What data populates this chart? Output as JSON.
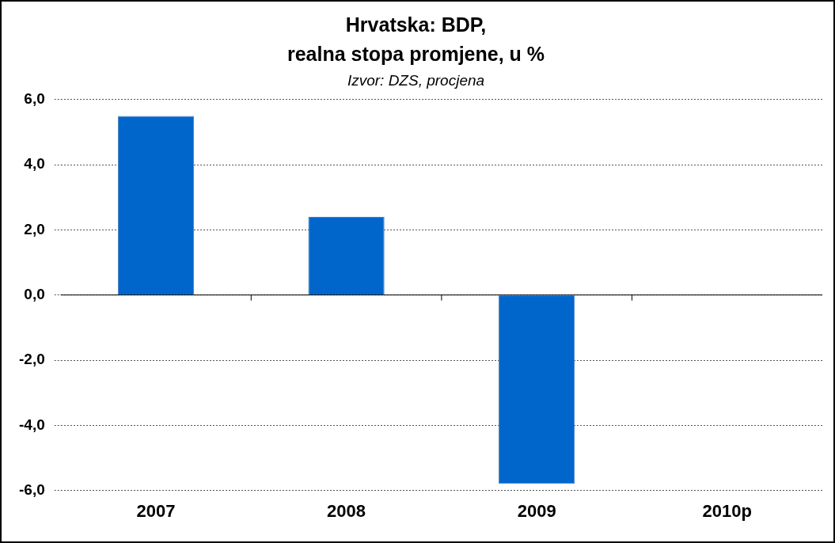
{
  "chart_data": {
    "type": "bar",
    "title": "Hrvatska: BDP,\nrealna stopa promjene, u %",
    "subtitle": "Izvor: DZS, procjena",
    "categories": [
      "2007",
      "2008",
      "2009",
      "2010p"
    ],
    "values": [
      5.5,
      2.4,
      -5.8,
      null
    ],
    "color": "#0066cc",
    "ylim": [
      -6,
      6
    ],
    "yticks": [
      {
        "value": -6,
        "label": "-6,0"
      },
      {
        "value": -4,
        "label": "-4,0"
      },
      {
        "value": -2,
        "label": "-2,0"
      },
      {
        "value": 0,
        "label": "0,0"
      },
      {
        "value": 2,
        "label": "2,0"
      },
      {
        "value": 4,
        "label": "4,0"
      },
      {
        "value": 6,
        "label": "6,0"
      }
    ],
    "grid": "y",
    "legend": false
  }
}
